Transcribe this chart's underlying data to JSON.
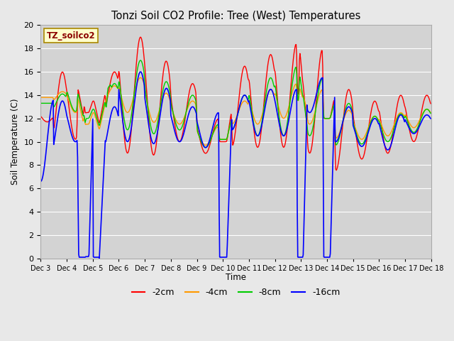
{
  "title": "Tonzi Soil CO2 Profile: Tree (West) Temperatures",
  "ylabel": "Soil Temperature (C)",
  "xlabel": "Time",
  "ylim": [
    0,
    20
  ],
  "bg_color": "#e8e8e8",
  "plot_bg_color": "#d3d3d3",
  "grid_color": "#ffffff",
  "legend_label": "TZ_soilco2",
  "legend_bg": "#ffffcc",
  "legend_edge": "#aa8800",
  "colors": {
    "2cm": "#ff0000",
    "4cm": "#ff9900",
    "8cm": "#00cc00",
    "16cm": "#0000ff"
  },
  "line_labels": [
    "-2cm",
    "-4cm",
    "-8cm",
    "-16cm"
  ],
  "xtick_labels": [
    "Dec 3",
    "Dec 4",
    "Dec 5",
    "Dec 6",
    "Dec 7",
    "Dec 8",
    "Dec 9",
    "Dec 10",
    "Dec 11",
    "Dec 12",
    "Dec 13",
    "Dec 14",
    "Dec 15",
    "Dec 16",
    "Dec 17",
    "Dec 18"
  ],
  "ytick_values": [
    0,
    2,
    4,
    6,
    8,
    10,
    12,
    14,
    16,
    18,
    20
  ],
  "n_days": 15,
  "pts_per_day": 48
}
